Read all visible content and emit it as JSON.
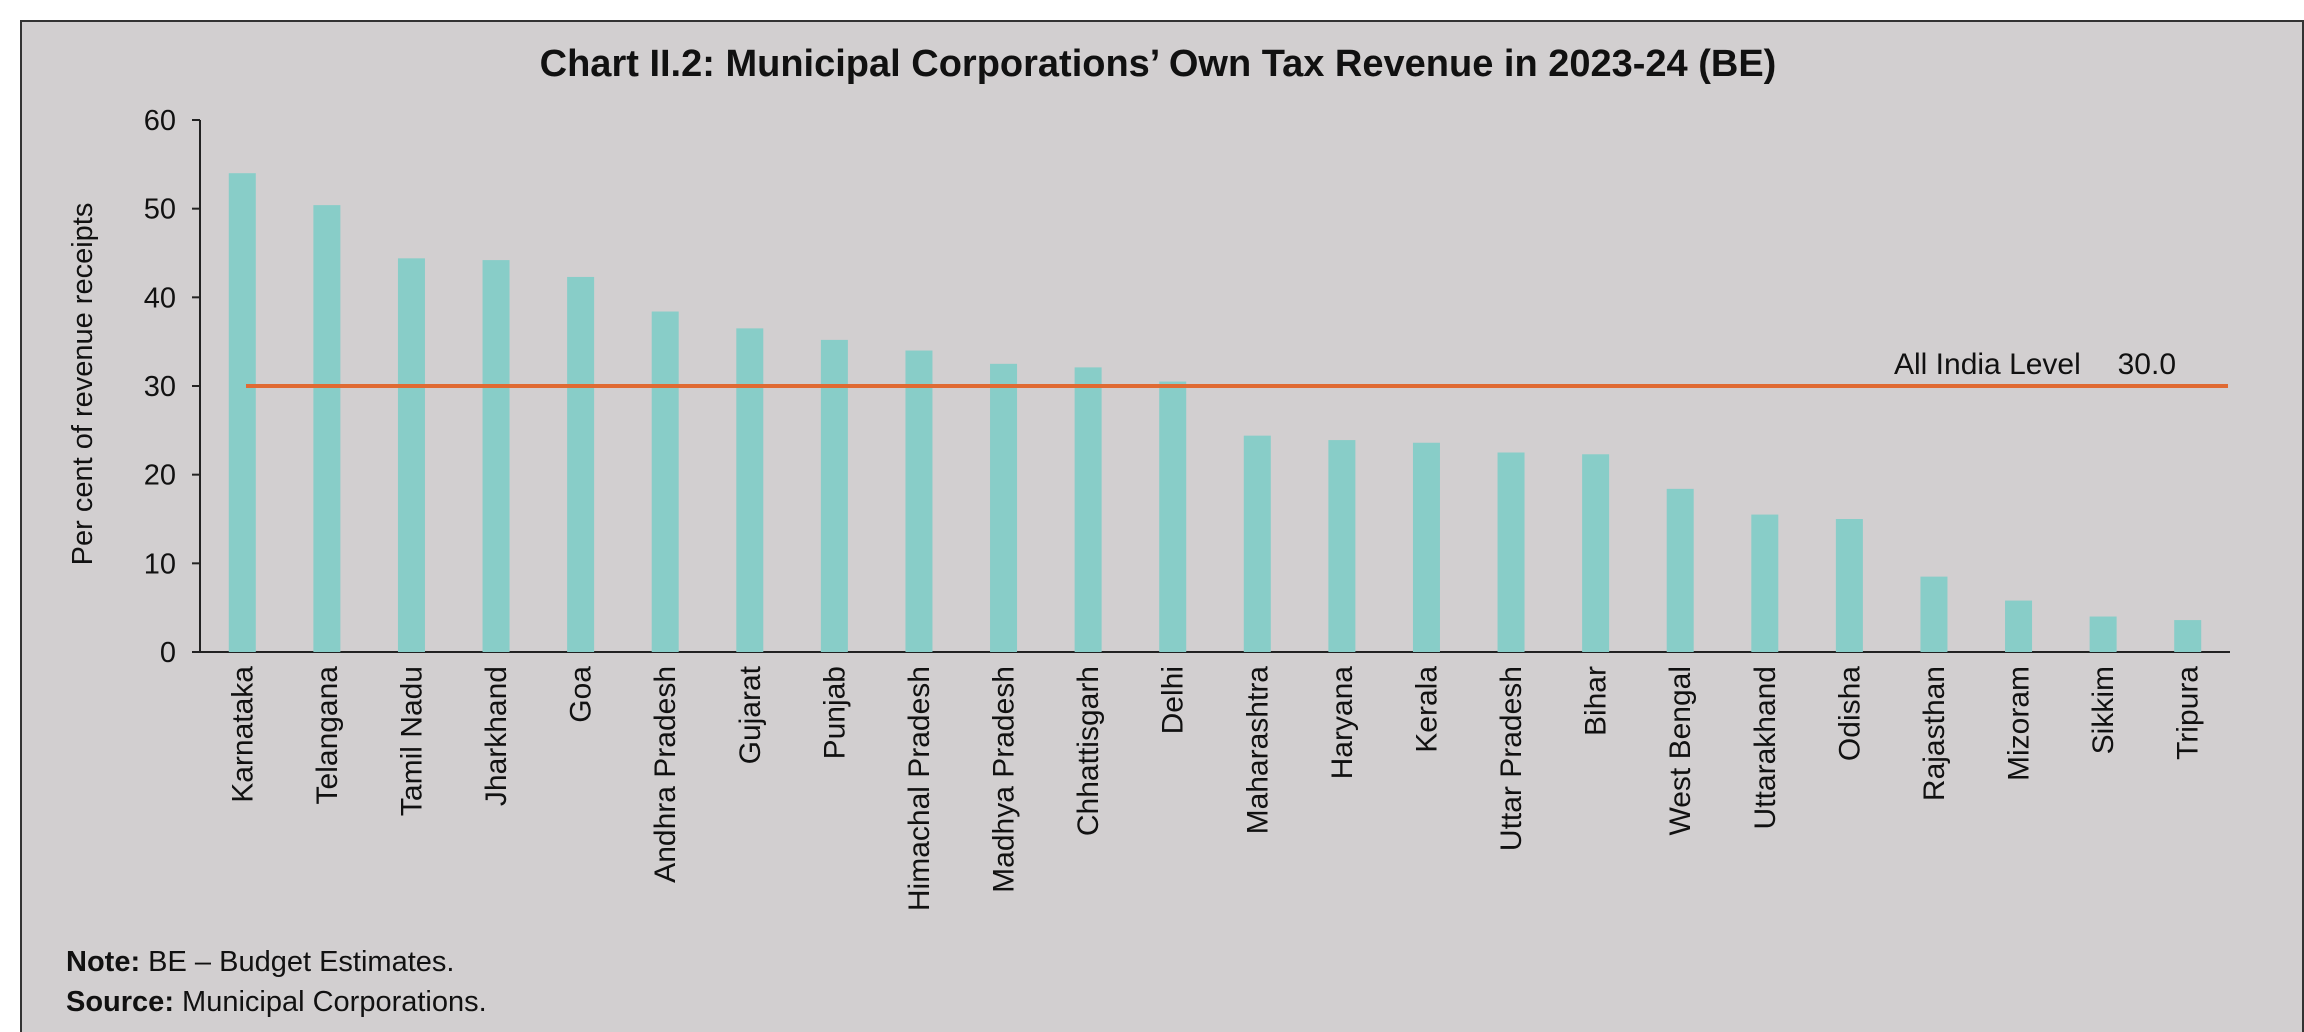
{
  "chart_data": {
    "type": "bar",
    "title": "Chart II.2: Municipal Corporations’ Own Tax Revenue in 2023-24 (BE)",
    "ylabel": "Per cent of revenue receipts",
    "xlabel": "",
    "ylim": [
      0,
      60
    ],
    "yticks": [
      "0",
      "10",
      "20",
      "30",
      "40",
      "50",
      "60"
    ],
    "categories": [
      "Karnataka",
      "Telangana",
      "Tamil Nadu",
      "Jharkhand",
      "Goa",
      "Andhra Pradesh",
      "Gujarat",
      "Punjab",
      "Himachal Pradesh",
      "Madhya Pradesh",
      "Chhattisgarh",
      "Delhi",
      "Maharashtra",
      "Haryana",
      "Kerala",
      "Uttar Pradesh",
      "Bihar",
      "West Bengal",
      "Uttarakhand",
      "Odisha",
      "Rajasthan",
      "Mizoram",
      "Sikkim",
      "Tripura"
    ],
    "values": [
      54.0,
      50.4,
      44.4,
      44.2,
      42.3,
      38.4,
      36.5,
      35.2,
      34.0,
      32.5,
      32.1,
      30.5,
      24.4,
      23.9,
      23.6,
      22.5,
      22.3,
      18.4,
      15.5,
      15.0,
      8.5,
      5.8,
      4.0,
      3.6
    ],
    "bar_color": "#88cdc8",
    "reference_line": {
      "label": "All India Level",
      "value_text": "30.0",
      "value": 30.0,
      "color": "#e06a33"
    },
    "grid": false,
    "legend": "none"
  },
  "note": {
    "label": "Note:",
    "text": " BE – Budget Estimates."
  },
  "source": {
    "label": "Source:",
    "text": " Municipal Corporations."
  }
}
